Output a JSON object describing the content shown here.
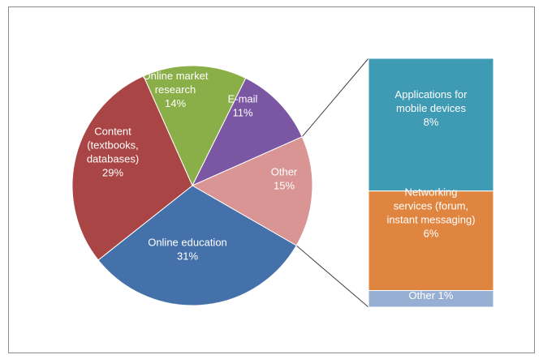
{
  "chart_data": {
    "type": "bar-of-pie",
    "pie": {
      "slices": [
        {
          "label_lines": [
            "Online market",
            "research",
            "14%"
          ],
          "value": 14,
          "color": "#8BAF48"
        },
        {
          "label_lines": [
            "E-mail",
            "11%"
          ],
          "value": 11,
          "color": "#7A56A3"
        },
        {
          "label_lines": [
            "Other",
            "15%"
          ],
          "value": 15,
          "color": "#D99594"
        },
        {
          "label_lines": [
            "Online education",
            "31%"
          ],
          "value": 31,
          "color": "#4471A9"
        },
        {
          "label_lines": [
            "Content",
            "(textbooks,",
            "databases)",
            "29%"
          ],
          "value": 29,
          "color": "#A94544"
        }
      ]
    },
    "bar": {
      "segments": [
        {
          "label_lines": [
            "Applications for",
            "mobile devices",
            "8%"
          ],
          "value": 8,
          "color": "#3F9AB4"
        },
        {
          "label_lines": [
            "Networking",
            "services (forum,",
            "instant messaging)",
            "6%"
          ],
          "value": 6,
          "color": "#E08540"
        },
        {
          "label_lines": [
            "Other 1%"
          ],
          "value": 1,
          "color": "#98AFD4"
        }
      ]
    }
  }
}
